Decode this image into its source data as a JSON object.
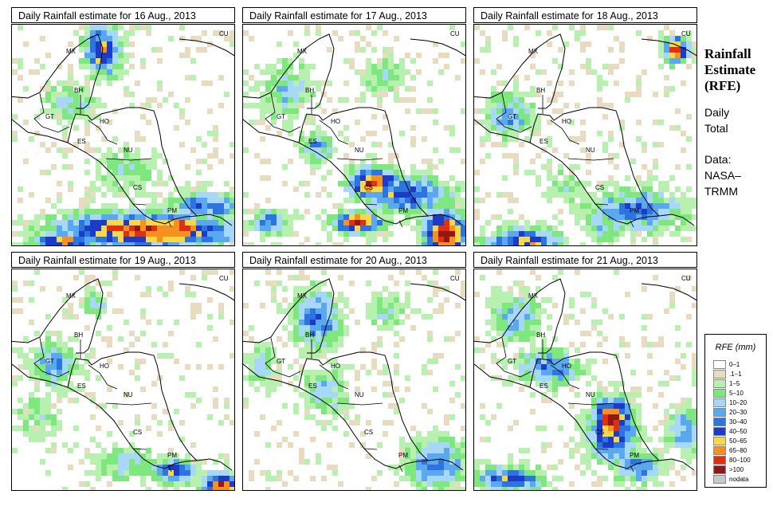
{
  "panels": [
    {
      "title_prefix": "Daily Rainfall estimate for",
      "date": "16 Aug., 2013"
    },
    {
      "title_prefix": "Daily Rainfall estimate for",
      "date": "17 Aug., 2013"
    },
    {
      "title_prefix": "Daily Rainfall estimate for",
      "date": "18 Aug., 2013"
    },
    {
      "title_prefix": "Daily Rainfall estimate for",
      "date": "19 Aug., 2013"
    },
    {
      "title_prefix": "Daily Rainfall estimate for",
      "date": "20 Aug., 2013"
    },
    {
      "title_prefix": "Daily Rainfall estimate for",
      "date": "21 Aug., 2013"
    }
  ],
  "country_labels": {
    "cu": "CU",
    "mx": "MX",
    "bh": "BH",
    "gt": "GT",
    "ho": "HO",
    "es": "ES",
    "nu": "NU",
    "cs": "CS",
    "pm": "PM"
  },
  "side": {
    "title_1": "Rainfall",
    "title_2": "Estimate",
    "title_3": "(RFE)",
    "daily": "Daily",
    "total": "Total",
    "data_label": "Data:",
    "source_1": "NASA–",
    "source_2": "TRMM"
  },
  "legend": {
    "title": "RFE (mm)",
    "items": [
      {
        "label": "0–1",
        "color": "#ffffff"
      },
      {
        "label": ".1–1",
        "color": "#e8dcc0"
      },
      {
        "label": "1–5",
        "color": "#b8f0b0"
      },
      {
        "label": "5–10",
        "color": "#7ee87e"
      },
      {
        "label": "10–20",
        "color": "#a8d8f8"
      },
      {
        "label": "20–30",
        "color": "#5aa8f0"
      },
      {
        "label": "30–40",
        "color": "#2c74e0"
      },
      {
        "label": "40–50",
        "color": "#1c3cc8"
      },
      {
        "label": "50–65",
        "color": "#f8d848"
      },
      {
        "label": "65–80",
        "color": "#f89020"
      },
      {
        "label": "80–100",
        "color": "#e03010"
      },
      {
        "label": ">100",
        "color": "#901818"
      },
      {
        "label": "nodata",
        "color": "#c8c8c8"
      }
    ]
  }
}
